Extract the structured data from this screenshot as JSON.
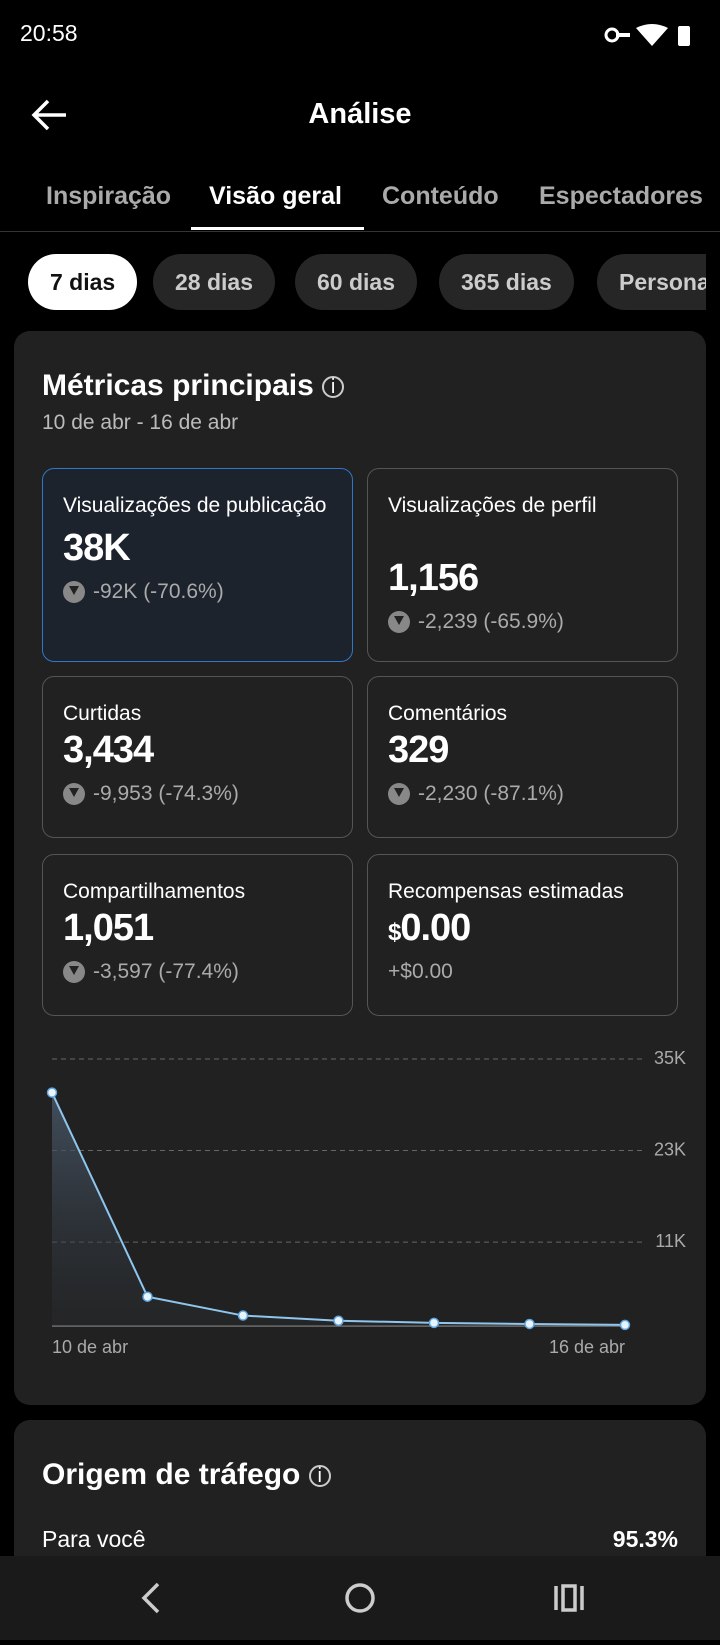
{
  "status_bar": {
    "time": "20:58"
  },
  "header": {
    "title": "Análise"
  },
  "tabs": [
    "Inspiração",
    "Visão geral",
    "Conteúdo",
    "Espectadores"
  ],
  "periods": [
    "7 dias",
    "28 dias",
    "60 dias",
    "365 dias",
    "Personalizado"
  ],
  "metrics": {
    "title": "Métricas principais",
    "date_range": "10 de abr - 16 de abr",
    "cards": [
      {
        "label": "Visualizações de publicação",
        "value": "38K",
        "change": "-92K (-70.6%)"
      },
      {
        "label": "Visualizações de perfil",
        "value": "1,156",
        "change": "-2,239 (-65.9%)"
      },
      {
        "label": "Curtidas",
        "value": "3,434",
        "change": "-9,953 (-74.3%)"
      },
      {
        "label": "Comentários",
        "value": "329",
        "change": "-2,230 (-87.1%)"
      },
      {
        "label": "Compartilhamentos",
        "value": "1,051",
        "change": "-3,597 (-77.4%)"
      },
      {
        "label": "Recompensas estimadas",
        "currency": "$",
        "value": "0.00",
        "change": "+$0.00"
      }
    ]
  },
  "chart_data": {
    "type": "line",
    "categories": [
      "10 de abr",
      null,
      null,
      null,
      null,
      null,
      "16 de abr"
    ],
    "values": [
      30600,
      3840,
      1370,
      690,
      410,
      270,
      140
    ],
    "color": "#8fc6ee",
    "ylim": [
      0,
      35000
    ],
    "yticks": [
      {
        "value": 11000,
        "label": "11K"
      },
      {
        "value": 23000,
        "label": "23K"
      },
      {
        "value": 35000,
        "label": "35K"
      }
    ],
    "grid": true
  },
  "traffic": {
    "title": "Origem de tráfego",
    "rows": [
      {
        "label": "Para você",
        "value": "95.3%"
      }
    ]
  }
}
